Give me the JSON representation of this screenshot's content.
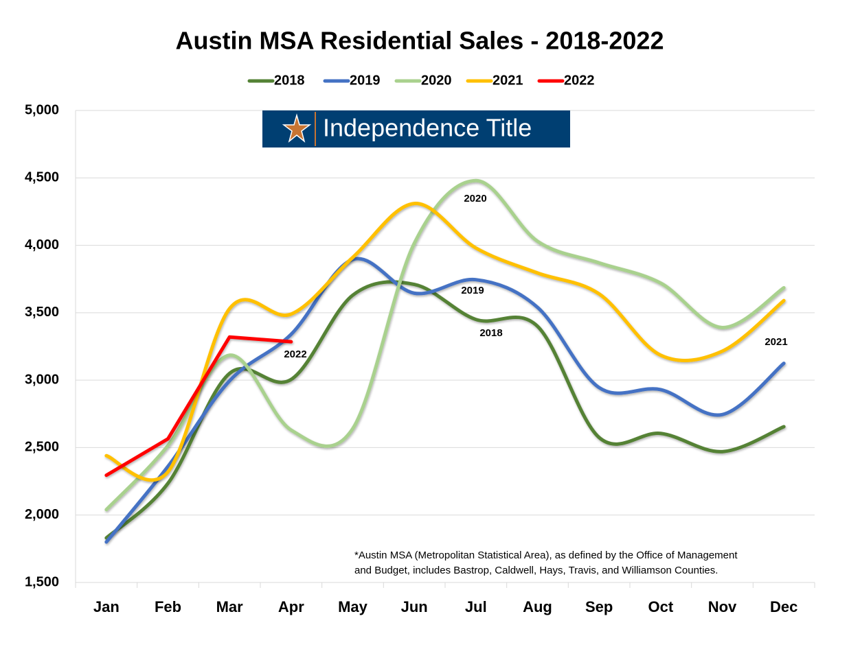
{
  "chart_data": {
    "type": "line",
    "title": "Austin MSA Residential Sales - 2018-2022",
    "logo": "Independence Title",
    "categories": [
      "Jan",
      "Feb",
      "Mar",
      "Apr",
      "May",
      "Jun",
      "Jul",
      "Aug",
      "Sep",
      "Oct",
      "Nov",
      "Dec"
    ],
    "series": [
      {
        "name": "2018",
        "color": "#548235",
        "values": [
          1830,
          2235,
          3050,
          3005,
          3630,
          3710,
          3450,
          3400,
          2575,
          2605,
          2470,
          2655
        ]
      },
      {
        "name": "2019",
        "color": "#4472c4",
        "values": [
          1800,
          2360,
          2995,
          3340,
          3895,
          3645,
          3745,
          3540,
          2945,
          2930,
          2745,
          3125
        ]
      },
      {
        "name": "2020",
        "color": "#a9d18e",
        "values": [
          2040,
          2515,
          3185,
          2630,
          2640,
          4015,
          4480,
          4030,
          3870,
          3720,
          3390,
          3685
        ]
      },
      {
        "name": "2021",
        "color": "#ffc000",
        "values": [
          2440,
          2320,
          3530,
          3490,
          3910,
          4310,
          3980,
          3795,
          3640,
          3185,
          3215,
          3590
        ]
      },
      {
        "name": "2022",
        "color": "#ff0000",
        "values": [
          2295,
          2565,
          3320,
          3285,
          null,
          null,
          null,
          null,
          null,
          null,
          null,
          null
        ]
      }
    ],
    "ylim": [
      1500,
      5000
    ],
    "yticks": [
      {
        "value": 1500,
        "label": "1,500"
      },
      {
        "value": 2000,
        "label": "2,000"
      },
      {
        "value": 2500,
        "label": "2,500"
      },
      {
        "value": 3000,
        "label": "3,000"
      },
      {
        "value": 3500,
        "label": "3,500"
      },
      {
        "value": 4000,
        "label": "4,000"
      },
      {
        "value": 4500,
        "label": "4,500"
      },
      {
        "value": 5000,
        "label": "5,000"
      }
    ],
    "grid": true,
    "legend": "top",
    "annotations": [
      "2020",
      "2019",
      "2018",
      "2022",
      "2021"
    ],
    "footnote": [
      "*Austin MSA (Metropolitan Statistical Area), as defined by the Office of Management",
      "and Budget, includes Bastrop, Caldwell, Hays, Travis, and Williamson Counties."
    ]
  }
}
